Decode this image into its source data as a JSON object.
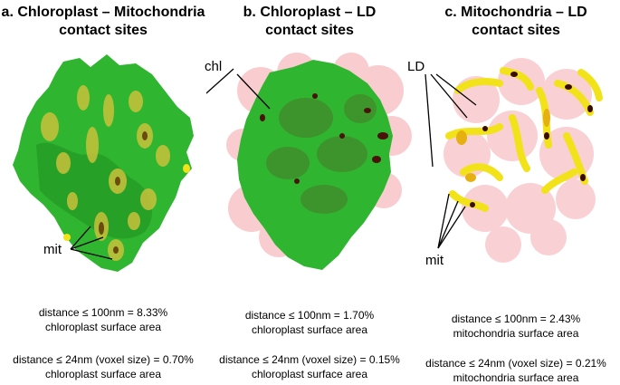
{
  "panels": [
    {
      "title_line1": "a. Chloroplast – Mitochondria",
      "title_line2": "contact sites",
      "labels": {
        "mit": "mit"
      },
      "stat1_line1": "distance ≤ 100nm = 8.33%",
      "stat1_line2": "chloroplast surface area",
      "stat2_line1": "distance ≤ 24nm (voxel size) = 0.70%",
      "stat2_line2": "chloroplast surface area"
    },
    {
      "title_line1": "b. Chloroplast – LD",
      "title_line2": "contact sites",
      "labels": {
        "chl": "chl"
      },
      "stat1_line1": "distance ≤ 100nm = 1.70%",
      "stat1_line2": "chloroplast surface area",
      "stat2_line1": "distance ≤ 24nm (voxel size) = 0.15%",
      "stat2_line2": "chloroplast surface area"
    },
    {
      "title_line1": "c. Mitochondria – LD",
      "title_line2": "contact sites",
      "labels": {
        "ld": "LD",
        "mit": "mit"
      },
      "stat1_line1": "distance ≤ 100nm = 2.43%",
      "stat1_line2": "mitochondria surface area",
      "stat2_line1": "distance ≤ 24nm (voxel size) = 0.21%",
      "stat2_line2": "mitochondria surface area"
    }
  ],
  "colors": {
    "chloroplast": "#2fb52f",
    "mitochondria": "#f2e21a",
    "lipid_droplet": "#f5a3a8",
    "contact": "#5a1a10"
  }
}
